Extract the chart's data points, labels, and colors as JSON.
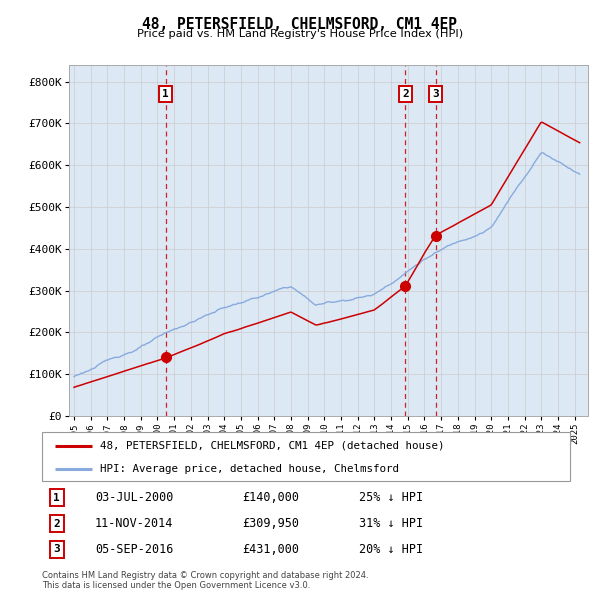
{
  "title": "48, PETERSFIELD, CHELMSFORD, CM1 4EP",
  "subtitle": "Price paid vs. HM Land Registry's House Price Index (HPI)",
  "bg_color": "#dce9f5",
  "red_line_label": "48, PETERSFIELD, CHELMSFORD, CM1 4EP (detached house)",
  "blue_line_label": "HPI: Average price, detached house, Chelmsford",
  "footnote": "Contains HM Land Registry data © Crown copyright and database right 2024.\nThis data is licensed under the Open Government Licence v3.0.",
  "sales": [
    {
      "num": "1",
      "date": "03-JUL-2000",
      "price": "£140,000",
      "pct": "25% ↓ HPI",
      "x_year": 2000.5,
      "y_val": 140000
    },
    {
      "num": "2",
      "date": "11-NOV-2014",
      "price": "£309,950",
      "pct": "31% ↓ HPI",
      "x_year": 2014.85,
      "y_val": 309950
    },
    {
      "num": "3",
      "date": "05-SEP-2016",
      "price": "£431,000",
      "pct": "20% ↓ HPI",
      "x_year": 2016.67,
      "y_val": 431000
    }
  ],
  "ylim": [
    0,
    840000
  ],
  "yticks": [
    0,
    100000,
    200000,
    300000,
    400000,
    500000,
    600000,
    700000,
    800000
  ],
  "ytick_labels": [
    "£0",
    "£100K",
    "£200K",
    "£300K",
    "£400K",
    "£500K",
    "£600K",
    "£700K",
    "£800K"
  ],
  "xlim_start": 1994.7,
  "xlim_end": 2025.8,
  "red_color": "#cc0000",
  "blue_color": "#88aadd",
  "vline_color": "#cc0000",
  "grid_color": "#cccccc",
  "sale_marker_size": 7
}
